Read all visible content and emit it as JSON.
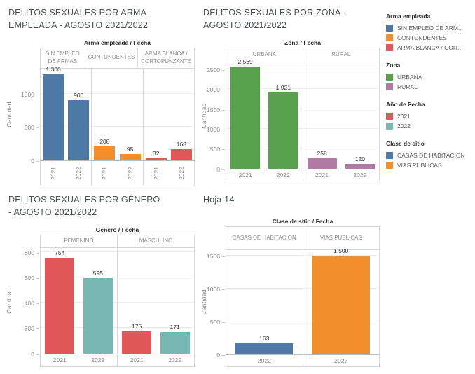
{
  "chart_data": [
    {
      "type": "bar",
      "title": "DELITOS SEXUALES POR ARMA EMPLEADA - AGOSTO 2021/2022",
      "panel_header": "Arma empleada / Fecha",
      "ylabel": "Cantidad",
      "yticks": [
        0,
        500,
        1000
      ],
      "ylim": [
        0,
        1400
      ],
      "x_tick_rotated": true,
      "grid": true,
      "groups": [
        {
          "label": "SIN EMPLEO DE ARMAS",
          "bars": [
            {
              "x": "2021",
              "value": 1300,
              "label": "1.300",
              "color": "#4e79a7"
            },
            {
              "x": "2022",
              "value": 906,
              "label": "906",
              "color": "#4e79a7"
            }
          ]
        },
        {
          "label": "CONTUNDENTES",
          "bars": [
            {
              "x": "2021",
              "value": 208,
              "label": "208",
              "color": "#f28e2b"
            },
            {
              "x": "2022",
              "value": 95,
              "label": "95",
              "color": "#f28e2b"
            }
          ]
        },
        {
          "label": "ARMA BLANCA / CORTOPUNZANTE",
          "bars": [
            {
              "x": "2021",
              "value": 32,
              "label": "32",
              "color": "#e15759"
            },
            {
              "x": "2022",
              "value": 168,
              "label": "168",
              "color": "#e15759"
            }
          ]
        }
      ]
    },
    {
      "type": "bar",
      "title": "DELITOS SEXUALES POR ZONA - AGOSTO 2021/2022",
      "panel_header": "Zona / Fecha",
      "ylabel": "Cantidad",
      "yticks": [
        0,
        500,
        1000,
        1500,
        2000,
        2500
      ],
      "ylim": [
        0,
        2700
      ],
      "x_tick_rotated": false,
      "grid": true,
      "groups": [
        {
          "label": "URBANA",
          "bars": [
            {
              "x": "2021",
              "value": 2569,
              "label": "2.569",
              "color": "#59a14f"
            },
            {
              "x": "2022",
              "value": 1921,
              "label": "1.921",
              "color": "#59a14f"
            }
          ]
        },
        {
          "label": "RURAL",
          "bars": [
            {
              "x": "2021",
              "value": 258,
              "label": "258",
              "color": "#b07aa1"
            },
            {
              "x": "2022",
              "value": 120,
              "label": "120",
              "color": "#b07aa1"
            }
          ]
        }
      ]
    },
    {
      "type": "bar",
      "title": "DELITOS SEXUALES POR GÉNERO - AGOSTO 2021/2022",
      "panel_header": "Genero / Fecha",
      "ylabel": "Cantidad",
      "yticks": [
        0,
        200,
        400,
        600,
        800
      ],
      "ylim": [
        0,
        840
      ],
      "x_tick_rotated": false,
      "grid": true,
      "groups": [
        {
          "label": "FEMENINO",
          "bars": [
            {
              "x": "2021",
              "value": 754,
              "label": "754",
              "color": "#e15759"
            },
            {
              "x": "2022",
              "value": 595,
              "label": "595",
              "color": "#76b7b2"
            }
          ]
        },
        {
          "label": "MASCULINO",
          "bars": [
            {
              "x": "2021",
              "value": 175,
              "label": "175",
              "color": "#e15759"
            },
            {
              "x": "2022",
              "value": 171,
              "label": "171",
              "color": "#76b7b2"
            }
          ]
        }
      ]
    },
    {
      "type": "bar",
      "title": "Hoja 14",
      "panel_header": "Clase de sitio / Fecha",
      "ylabel": "Cantidad",
      "yticks": [
        0,
        500,
        1000,
        1500
      ],
      "ylim": [
        0,
        1600
      ],
      "x_tick_rotated": false,
      "grid": true,
      "groups": [
        {
          "label": "CASAS DE HABITACION",
          "bars": [
            {
              "x": "2022",
              "value": 163,
              "label": "163",
              "color": "#4e79a7"
            }
          ]
        },
        {
          "label": "VIAS PUBLICAS",
          "bars": [
            {
              "x": "2022",
              "value": 1500,
              "label": "1.500",
              "color": "#f28e2b"
            }
          ]
        }
      ]
    }
  ],
  "legend": {
    "sections": [
      {
        "title": "Arma empleada",
        "items": [
          {
            "label": "SIN EMPLEO DE ARM..",
            "color": "#4e79a7"
          },
          {
            "label": "CONTUNDENTES",
            "color": "#f28e2b"
          },
          {
            "label": "ARMA BLANCA / COR..",
            "color": "#e15759"
          }
        ]
      },
      {
        "title": "Zona",
        "items": [
          {
            "label": "URBANA",
            "color": "#59a14f"
          },
          {
            "label": "RURAL",
            "color": "#b07aa1"
          }
        ]
      },
      {
        "title": "Año de Fecha",
        "items": [
          {
            "label": "2021",
            "color": "#e15759"
          },
          {
            "label": "2022",
            "color": "#76b7b2"
          }
        ]
      },
      {
        "title": "Clase de sitio",
        "items": [
          {
            "label": "CASAS DE HABITACION",
            "color": "#4e79a7"
          },
          {
            "label": "VIAS PUBLICAS",
            "color": "#f28e2b"
          }
        ]
      }
    ]
  }
}
